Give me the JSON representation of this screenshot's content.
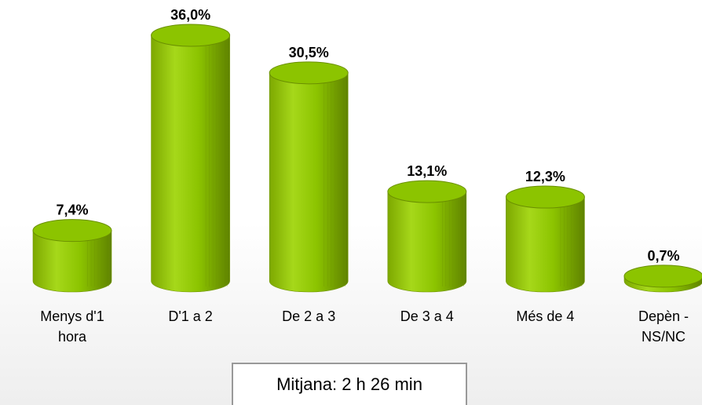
{
  "chart_data": {
    "type": "bar",
    "categories": [
      "Menys d'1 hora",
      "D'1 a 2",
      "De 2 a 3",
      "De 3 a 4",
      "Més de 4",
      "Depèn - NS/NC"
    ],
    "values": [
      7.4,
      36.0,
      30.5,
      13.1,
      12.3,
      0.7
    ],
    "value_labels": [
      "7,4%",
      "36,0%",
      "30,5%",
      "13,1%",
      "12,3%",
      "0,7%"
    ],
    "color": "#8cc400",
    "annotation": "Mitjana: 2 h 26 min"
  }
}
